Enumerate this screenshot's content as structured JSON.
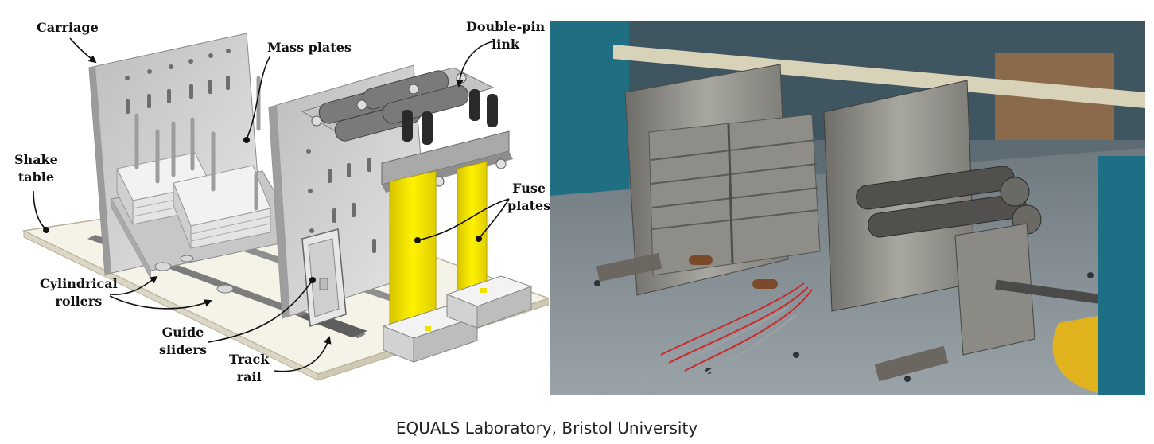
{
  "labels": {
    "carriage": "Carriage",
    "mass_plates": "Mass plates",
    "double_pin_link_1": "Double-pin",
    "double_pin_link_2": "link",
    "shake_table_1": "Shake",
    "shake_table_2": "table",
    "fuse_plates_1": "Fuse",
    "fuse_plates_2": "plates",
    "cylindrical_rollers_1": "Cylindrical",
    "cylindrical_rollers_2": "rollers",
    "guide_sliders_1": "Guide",
    "guide_sliders_2": "sliders",
    "track_rail_1": "Track",
    "track_rail_2": "rail"
  },
  "caption": "EQUALS Laboratory, Bristol University",
  "colors": {
    "fuse_yellow": "#f3e000",
    "steel_light": "#d9d9d9",
    "steel_dark": "#8a8a8a",
    "base_plate": "#f4f1e6"
  }
}
